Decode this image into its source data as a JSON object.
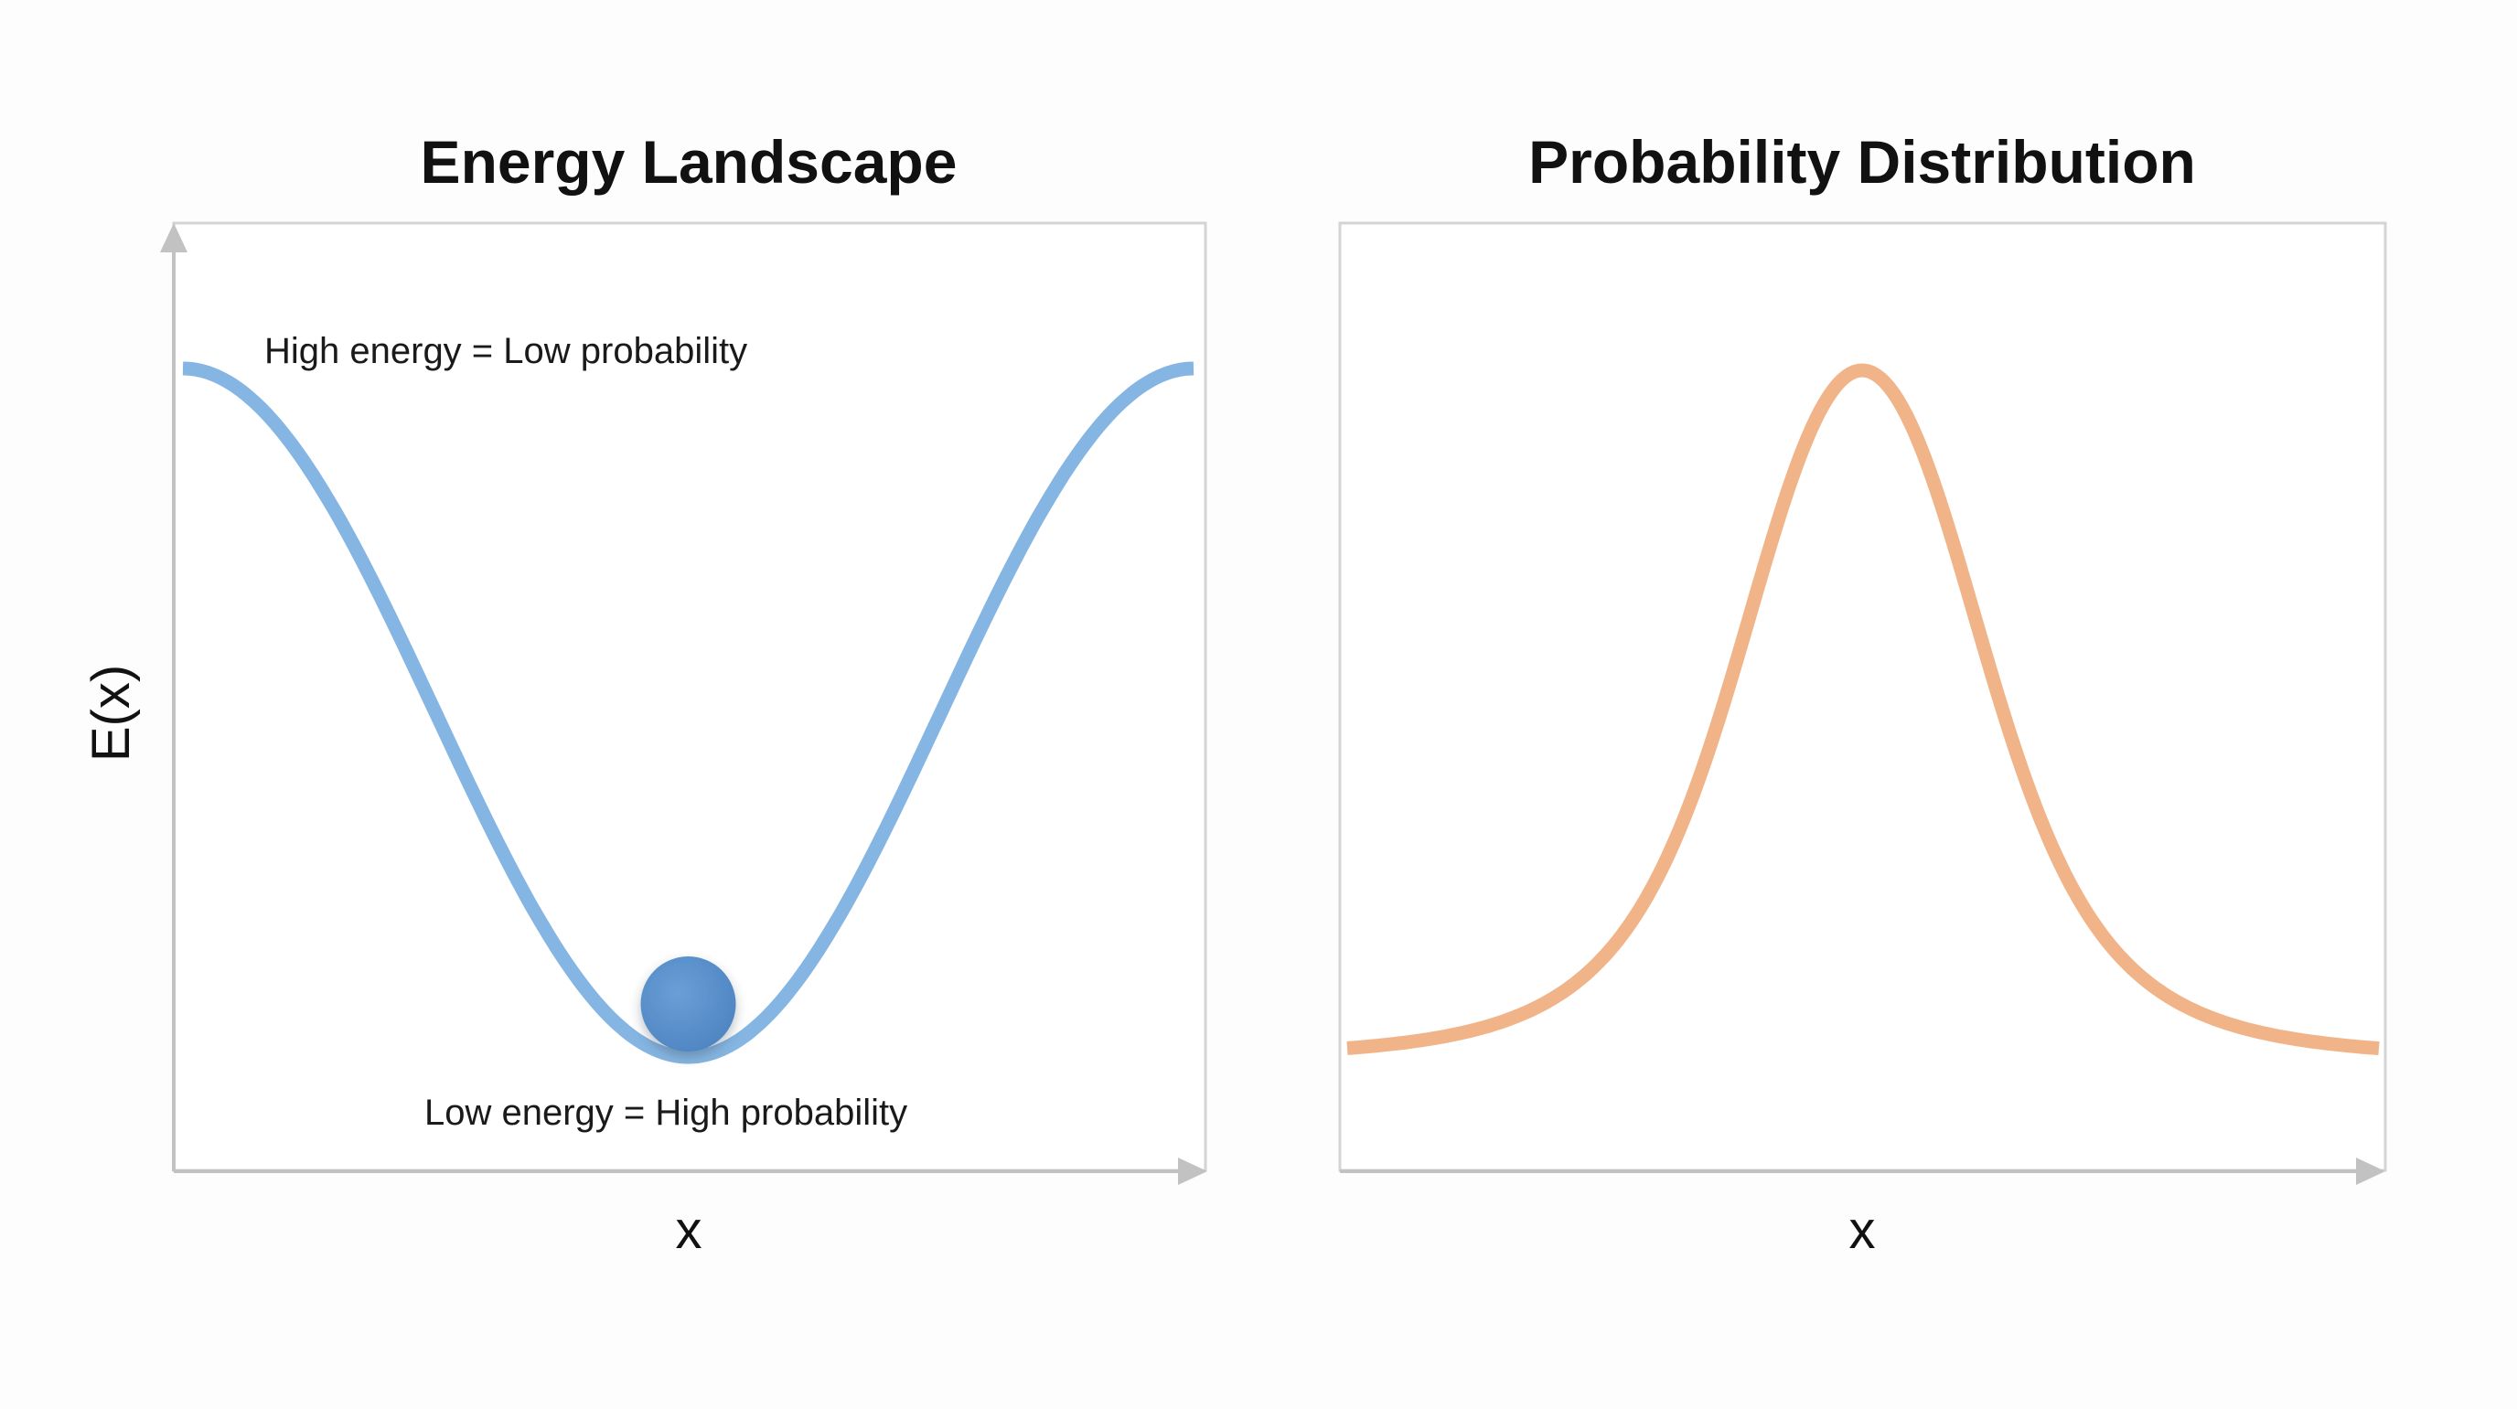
{
  "chart_data": [
    {
      "type": "line",
      "title": "Energy Landscape",
      "xlabel": "x",
      "ylabel": "E(x)",
      "color": "#85b5e2",
      "marker_color": "#5a90cb",
      "annotations": [
        "High energy = Low probability",
        "Low energy = High probability"
      ]
    },
    {
      "type": "line",
      "title": "Probability Distribution",
      "xlabel": "x",
      "ylabel": "",
      "color": "#f1b488"
    }
  ]
}
